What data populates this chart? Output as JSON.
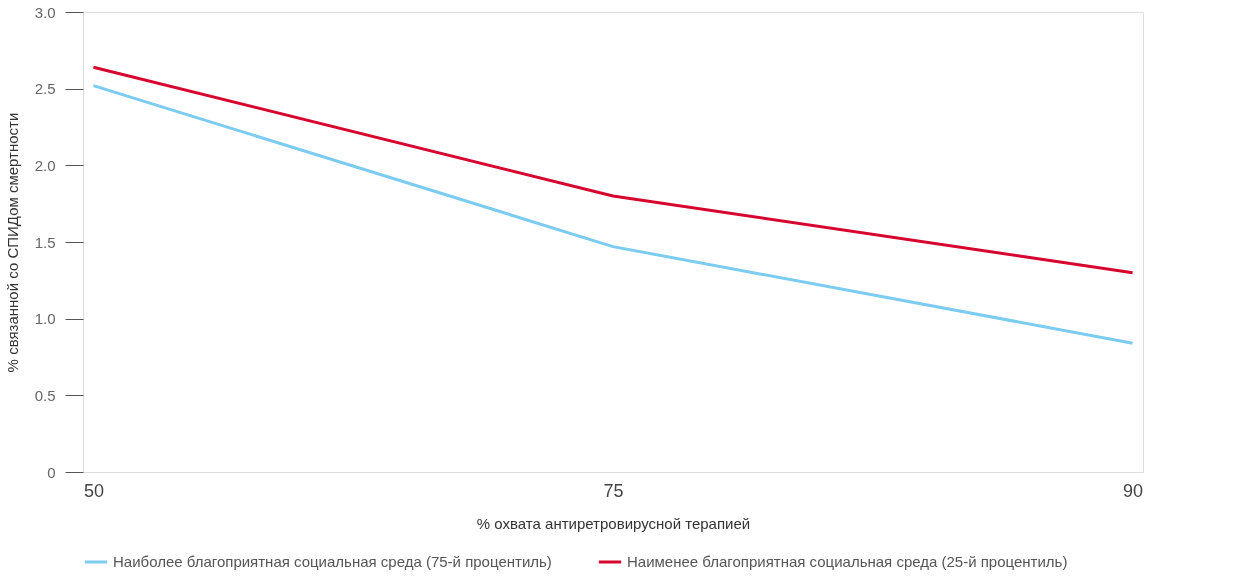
{
  "chart_data": {
    "type": "line",
    "xlabel": "% охвата антиретровирусной терапией",
    "ylabel": "% связанной со СПИДом смертности",
    "categories": [
      "50",
      "75",
      "90"
    ],
    "series": [
      {
        "name": "Наиболее благоприятная социальная среда (75-й процентиль)",
        "color": "#7ccbf0",
        "values": [
          2.52,
          1.47,
          0.84
        ]
      },
      {
        "name": "Наименее благоприятная социальная среда (25-й процентиль)",
        "color": "#d7062f",
        "values": [
          2.64,
          1.8,
          1.3
        ]
      }
    ],
    "ylim": [
      0,
      3
    ],
    "yticks": [
      0,
      0.5,
      {
        "value": 1,
        "label": "1.0"
      },
      1.5,
      {
        "value": 2,
        "label": "2.0"
      },
      2.5,
      {
        "value": 3,
        "label": "3.0"
      }
    ],
    "grid": false,
    "legend": "bottom"
  }
}
